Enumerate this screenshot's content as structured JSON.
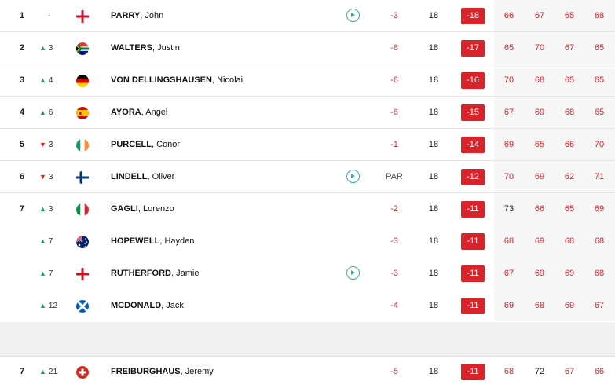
{
  "rows": [
    {
      "pos": "1",
      "move_dir": "none",
      "move": "-",
      "flag": "england",
      "last": "PARRY",
      "first": "John",
      "video": true,
      "today": "-3",
      "thru": "18",
      "total": "-18",
      "rounds": [
        "66",
        "67",
        "65",
        "68"
      ]
    },
    {
      "pos": "2",
      "move_dir": "up",
      "move": "3",
      "flag": "south-africa",
      "last": "WALTERS",
      "first": "Justin",
      "video": false,
      "today": "-6",
      "thru": "18",
      "total": "-17",
      "rounds": [
        "65",
        "70",
        "67",
        "65"
      ]
    },
    {
      "pos": "3",
      "move_dir": "up",
      "move": "4",
      "flag": "germany",
      "last": "VON DELLINGSHAUSEN",
      "first": "Nicolai",
      "video": false,
      "today": "-6",
      "thru": "18",
      "total": "-16",
      "rounds": [
        "70",
        "68",
        "65",
        "65"
      ]
    },
    {
      "pos": "4",
      "move_dir": "up",
      "move": "6",
      "flag": "spain",
      "last": "AYORA",
      "first": "Angel",
      "video": false,
      "today": "-6",
      "thru": "18",
      "total": "-15",
      "rounds": [
        "67",
        "69",
        "68",
        "65"
      ]
    },
    {
      "pos": "5",
      "move_dir": "down",
      "move": "3",
      "flag": "ireland",
      "last": "PURCELL",
      "first": "Conor",
      "video": false,
      "today": "-1",
      "thru": "18",
      "total": "-14",
      "rounds": [
        "69",
        "65",
        "66",
        "70"
      ]
    },
    {
      "pos": "6",
      "move_dir": "down",
      "move": "3",
      "flag": "finland",
      "last": "LINDELL",
      "first": "Oliver",
      "video": true,
      "today": "PAR",
      "thru": "18",
      "total": "-12",
      "rounds": [
        "70",
        "69",
        "62",
        "71"
      ]
    },
    {
      "pos": "7",
      "move_dir": "up",
      "move": "3",
      "flag": "italy",
      "last": "GAGLI",
      "first": "Lorenzo",
      "video": false,
      "today": "-2",
      "thru": "18",
      "total": "-11",
      "rounds": [
        "73",
        "66",
        "65",
        "69"
      ]
    },
    {
      "pos": "",
      "move_dir": "up",
      "move": "7",
      "flag": "australia",
      "last": "HOPEWELL",
      "first": "Hayden",
      "video": false,
      "today": "-3",
      "thru": "18",
      "total": "-11",
      "rounds": [
        "68",
        "69",
        "68",
        "68"
      ]
    },
    {
      "pos": "",
      "move_dir": "up",
      "move": "7",
      "flag": "england",
      "last": "RUTHERFORD",
      "first": "Jamie",
      "video": true,
      "today": "-3",
      "thru": "18",
      "total": "-11",
      "rounds": [
        "67",
        "69",
        "69",
        "68"
      ]
    },
    {
      "pos": "",
      "move_dir": "up",
      "move": "12",
      "flag": "scotland",
      "last": "MCDONALD",
      "first": "Jack",
      "video": false,
      "today": "-4",
      "thru": "18",
      "total": "-11",
      "rounds": [
        "69",
        "68",
        "69",
        "67"
      ]
    },
    {
      "pos": "7",
      "move_dir": "up",
      "move": "21",
      "flag": "switzerland",
      "last": "FREIBURGHAUS",
      "first": "Jeremy",
      "video": false,
      "today": "-5",
      "thru": "18",
      "total": "-11",
      "rounds": [
        "68",
        "72",
        "67",
        "66"
      ]
    }
  ],
  "colors": {
    "under_par": "#d8232a",
    "total_badge": "#d8232a",
    "movement_up": "#1aa05a",
    "movement_down": "#d8232a",
    "video_icon": "#2bb0a6"
  }
}
